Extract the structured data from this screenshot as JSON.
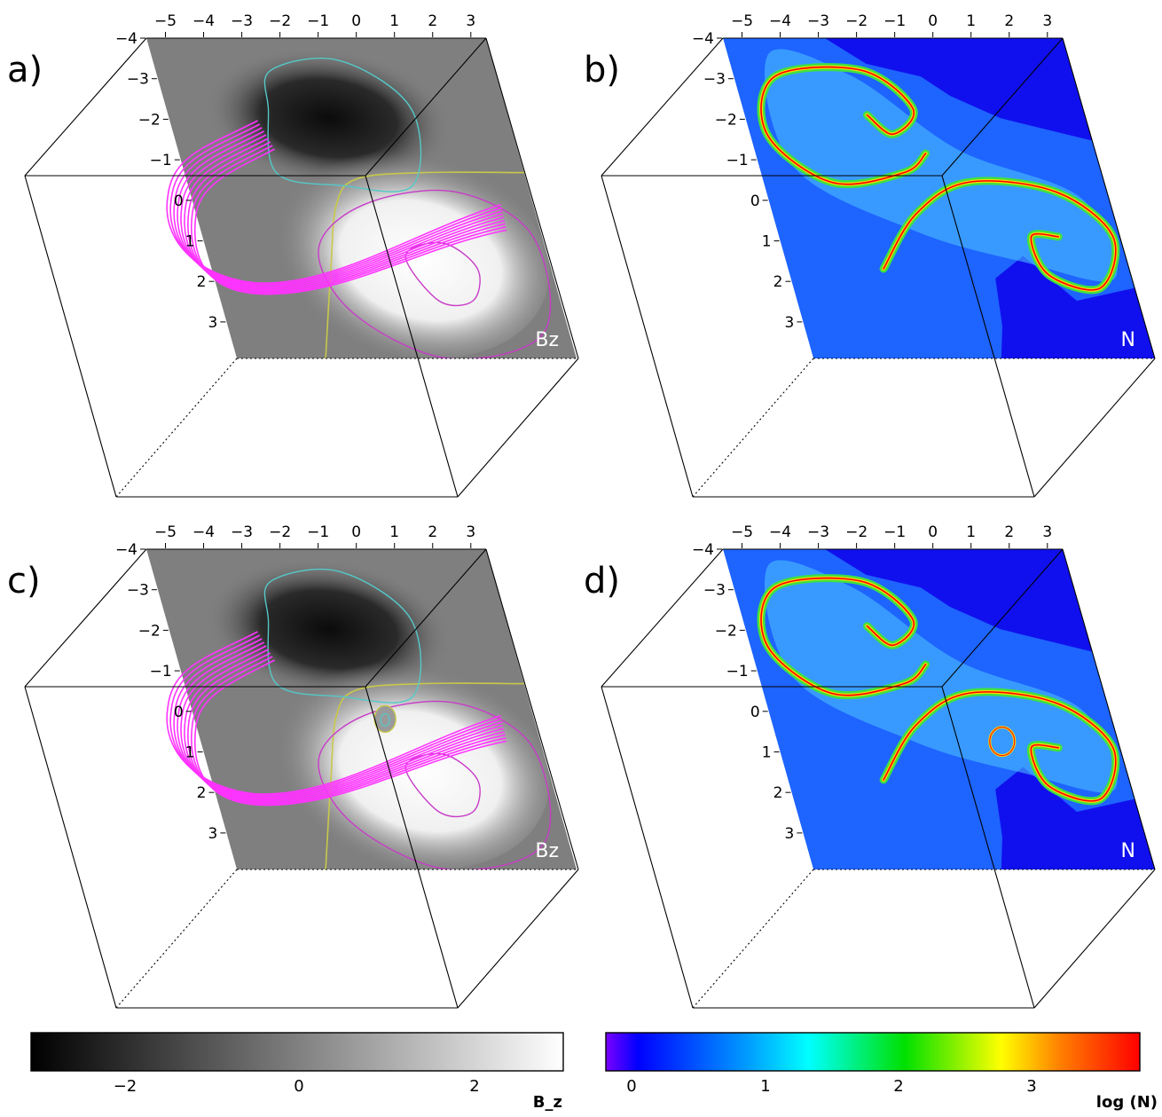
{
  "panels": [
    {
      "id": "a",
      "label": "a)",
      "quantity": "Bz",
      "kind": "bz",
      "x_ticks": [
        "−5",
        "−4",
        "−3",
        "−2",
        "−1",
        "0",
        "1",
        "2",
        "3"
      ],
      "y_ticks": [
        "−4",
        "−3",
        "−2",
        "−1",
        "0",
        "1",
        "2",
        "3"
      ]
    },
    {
      "id": "b",
      "label": "b)",
      "quantity": "N",
      "kind": "density",
      "x_ticks": [
        "−5",
        "−4",
        "−3",
        "−2",
        "−1",
        "0",
        "1",
        "2",
        "3"
      ],
      "y_ticks": [
        "−4",
        "−3",
        "−2",
        "−1",
        "0",
        "1",
        "2",
        "3"
      ]
    },
    {
      "id": "c",
      "label": "c)",
      "quantity": "Bz",
      "kind": "bz",
      "x_ticks": [
        "−5",
        "−4",
        "−3",
        "−2",
        "−1",
        "0",
        "1",
        "2",
        "3"
      ],
      "y_ticks": [
        "−4",
        "−3",
        "−2",
        "−1",
        "0",
        "1",
        "2",
        "3"
      ]
    },
    {
      "id": "d",
      "label": "d)",
      "quantity": "N",
      "kind": "density",
      "x_ticks": [
        "−5",
        "−4",
        "−3",
        "−2",
        "−1",
        "0",
        "1",
        "2",
        "3"
      ],
      "y_ticks": [
        "−4",
        "−3",
        "−2",
        "−1",
        "0",
        "1",
        "2",
        "3"
      ]
    }
  ],
  "colorbars": [
    {
      "id": "bz",
      "label": "B_z",
      "ticks": [
        "−2",
        "0",
        "2"
      ],
      "colors": [
        "#000000",
        "#ffffff"
      ]
    },
    {
      "id": "logn",
      "label": "log (N)",
      "ticks": [
        "0",
        "1",
        "2",
        "3"
      ],
      "colors": [
        "#7a00ff",
        "#0000ff",
        "#00a0ff",
        "#00ffff",
        "#00ff00",
        "#ffff00",
        "#ff8000",
        "#ff0000"
      ]
    }
  ],
  "colors": {
    "fieldlines": "#ff33ff",
    "contour_negative": "#55c8c8",
    "contour_positive": "#c83cc8",
    "contour_pil": "#c8c84a",
    "density_background": "#1e64ff",
    "density_low": "#1010ee",
    "density_ridge_outer": "#40e040",
    "density_ridge_mid": "#ffd800",
    "density_ridge_core": "#ff0000"
  }
}
